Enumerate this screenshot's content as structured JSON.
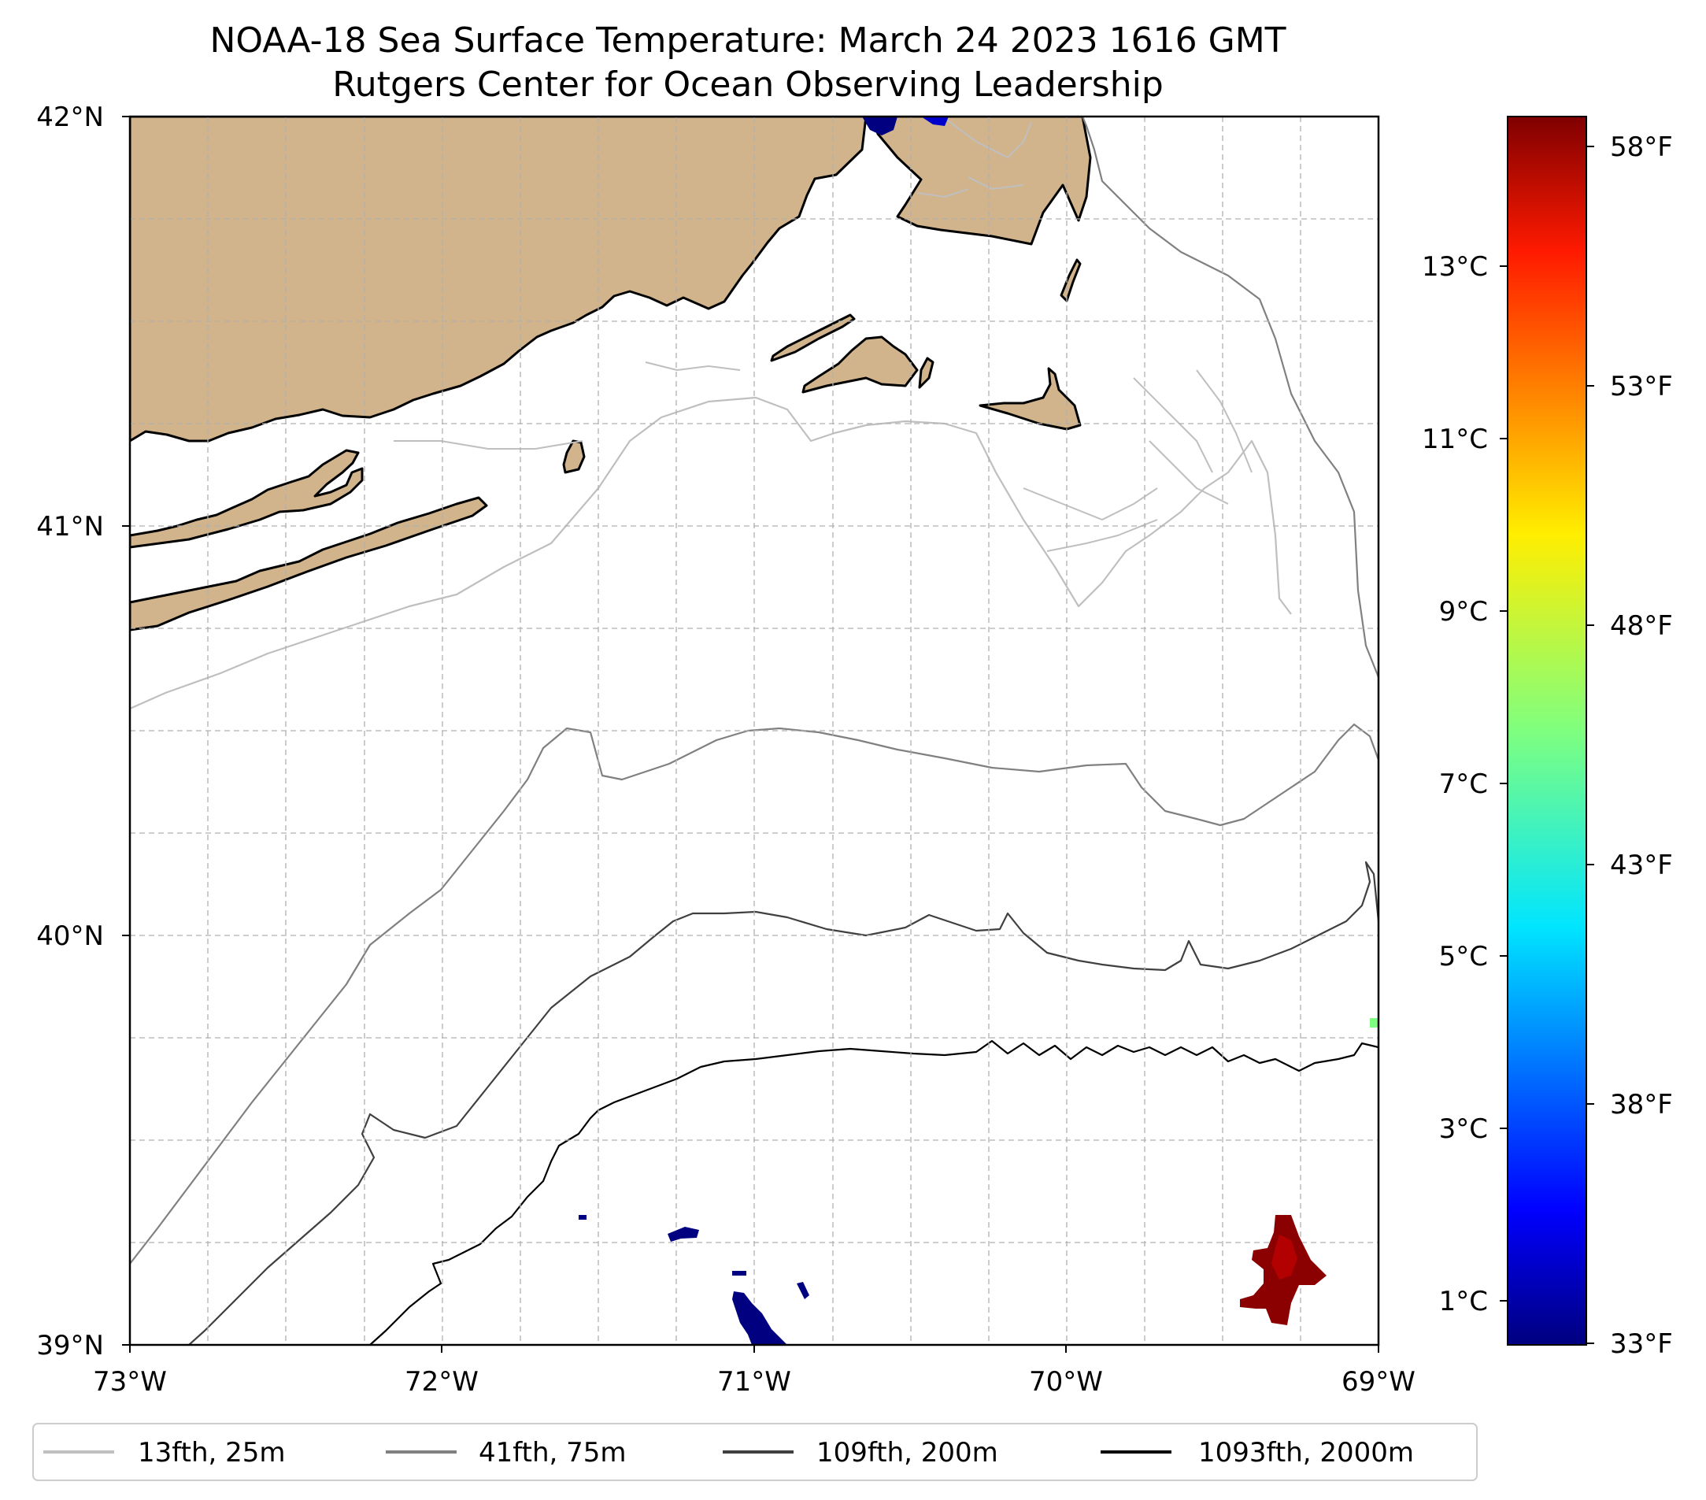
{
  "title": {
    "line1": "NOAA-18 Sea Surface Temperature: March 24 2023 1616 GMT",
    "line2": "Rutgers Center for Ocean Observing Leadership"
  },
  "map": {
    "lat_labels": [
      "42°N",
      "41°N",
      "40°N",
      "39°N"
    ],
    "lon_labels": [
      "73°W",
      "72°W",
      "71°W",
      "70°W",
      "69°W"
    ],
    "extent": {
      "lon_min": -73,
      "lon_max": -69,
      "lat_min": 39,
      "lat_max": 42
    },
    "land_color": "#d2b48c",
    "sst_patches": [
      {
        "name": "north-blue-patch",
        "temp_f": 33,
        "color": "#000080"
      },
      {
        "name": "south-blue-patch",
        "temp_f": 33,
        "color": "#000080"
      },
      {
        "name": "east-red-patch",
        "temp_f": 58,
        "color": "#8b0000"
      },
      {
        "name": "edge-green-pixel",
        "temp_f": 46,
        "color": "#7fff7f"
      }
    ]
  },
  "colorbar": {
    "celsius_labels": [
      "13°C",
      "11°C",
      "9°C",
      "7°C",
      "5°C",
      "3°C",
      "1°C"
    ],
    "fahrenheit_labels": [
      "58°F",
      "53°F",
      "48°F",
      "43°F",
      "38°F",
      "33°F"
    ],
    "colormap": "jet"
  },
  "legend": {
    "items": [
      {
        "label": "13fth, 25m",
        "color": "#bfbfbf"
      },
      {
        "label": "41fth, 75m",
        "color": "#808080"
      },
      {
        "label": "109fth, 200m",
        "color": "#404040"
      },
      {
        "label": "1093fth, 2000m",
        "color": "#000000"
      }
    ]
  }
}
